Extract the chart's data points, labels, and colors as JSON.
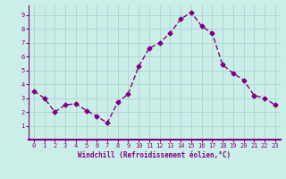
{
  "x": [
    0,
    1,
    2,
    3,
    4,
    5,
    6,
    7,
    8,
    9,
    10,
    11,
    12,
    13,
    14,
    15,
    16,
    17,
    18,
    19,
    20,
    21,
    22,
    23
  ],
  "y": [
    3.5,
    3.0,
    2.0,
    2.5,
    2.6,
    2.1,
    1.7,
    1.2,
    2.7,
    3.3,
    5.3,
    6.6,
    7.0,
    7.7,
    8.7,
    9.2,
    8.2,
    7.7,
    5.4,
    4.8,
    4.3,
    3.2,
    3.0,
    2.5
  ],
  "line_color": "#800080",
  "marker": "D",
  "marker_size": 2.5,
  "bg_color": "#cceee8",
  "grid_color": "#b0d8d4",
  "xlabel": "Windchill (Refroidissement éolien,°C)",
  "xlabel_color": "#800080",
  "tick_color": "#800080",
  "axis_color": "#800080",
  "xlim": [
    -0.5,
    23.5
  ],
  "ylim": [
    0,
    9.7
  ],
  "yticks": [
    1,
    2,
    3,
    4,
    5,
    6,
    7,
    8,
    9
  ],
  "xticks": [
    0,
    1,
    2,
    3,
    4,
    5,
    6,
    7,
    8,
    9,
    10,
    11,
    12,
    13,
    14,
    15,
    16,
    17,
    18,
    19,
    20,
    21,
    22,
    23
  ],
  "tick_fontsize": 5.0,
  "xlabel_fontsize": 5.5,
  "xlabel_fontweight": "bold"
}
